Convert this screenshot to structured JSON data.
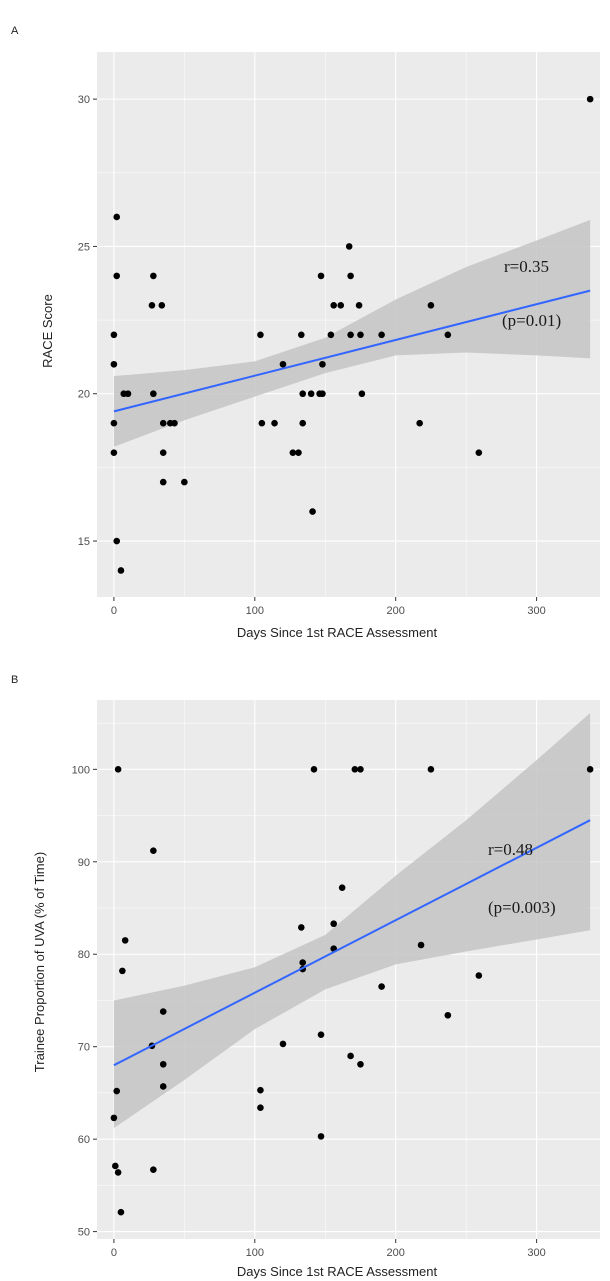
{
  "chart_data": [
    {
      "panel": "A",
      "type": "scatter",
      "xlabel": "Days Since 1st RACE Assessment",
      "ylabel": "RACE Score",
      "xlim": [
        -12,
        345
      ],
      "ylim": [
        13.1,
        31.6
      ],
      "x_ticks": [
        0,
        100,
        200,
        300
      ],
      "y_ticks": [
        15,
        20,
        25,
        30
      ],
      "grid": true,
      "background": "#ebebeb",
      "point_color": "#000000",
      "fit_line_color": "#3366ff",
      "ci_band_color": "#c4c4c4",
      "points": [
        [
          0,
          22
        ],
        [
          0,
          21
        ],
        [
          0,
          19
        ],
        [
          0,
          18
        ],
        [
          2,
          26
        ],
        [
          2,
          24
        ],
        [
          2,
          15
        ],
        [
          5,
          14
        ],
        [
          7,
          20
        ],
        [
          10,
          20
        ],
        [
          28,
          24
        ],
        [
          27,
          23
        ],
        [
          28,
          20
        ],
        [
          34,
          23
        ],
        [
          35,
          19
        ],
        [
          35,
          18
        ],
        [
          35,
          17
        ],
        [
          40,
          19
        ],
        [
          43,
          19
        ],
        [
          50,
          17
        ],
        [
          104,
          22
        ],
        [
          105,
          19
        ],
        [
          114,
          19
        ],
        [
          120,
          21
        ],
        [
          127,
          18
        ],
        [
          131,
          18
        ],
        [
          133,
          22
        ],
        [
          134,
          20
        ],
        [
          134,
          19
        ],
        [
          140,
          20
        ],
        [
          141,
          16
        ],
        [
          146,
          20
        ],
        [
          147,
          24
        ],
        [
          148,
          21
        ],
        [
          148,
          20
        ],
        [
          154,
          22
        ],
        [
          156,
          23
        ],
        [
          161,
          23
        ],
        [
          167,
          25
        ],
        [
          168,
          24
        ],
        [
          168,
          22
        ],
        [
          174,
          23
        ],
        [
          175,
          22
        ],
        [
          176,
          20
        ],
        [
          190,
          22
        ],
        [
          217,
          19
        ],
        [
          225,
          23
        ],
        [
          237,
          22
        ],
        [
          259,
          18
        ],
        [
          338,
          30
        ]
      ],
      "fit_line": [
        [
          0,
          19.4
        ],
        [
          338,
          23.5
        ]
      ],
      "ci_upper": [
        [
          0,
          20.6
        ],
        [
          50,
          20.8
        ],
        [
          100,
          21.1
        ],
        [
          150,
          21.9
        ],
        [
          200,
          23.2
        ],
        [
          250,
          24.3
        ],
        [
          300,
          25.2
        ],
        [
          338,
          25.9
        ]
      ],
      "ci_lower": [
        [
          0,
          18.2
        ],
        [
          50,
          19.1
        ],
        [
          100,
          19.9
        ],
        [
          150,
          20.7
        ],
        [
          200,
          21.3
        ],
        [
          250,
          21.4
        ],
        [
          300,
          21.3
        ],
        [
          338,
          21.2
        ]
      ],
      "annotations": [
        "r=0.35",
        "(p=0.01)"
      ]
    },
    {
      "panel": "B",
      "type": "scatter",
      "xlabel": "Days Since 1st RACE Assessment",
      "ylabel": "Trainee Proportion of UVA (% of Time)",
      "xlim": [
        -12,
        345
      ],
      "ylim": [
        49.2,
        107.5
      ],
      "x_ticks": [
        0,
        100,
        200,
        300
      ],
      "y_ticks": [
        50,
        60,
        70,
        80,
        90,
        100
      ],
      "grid": true,
      "background": "#ebebeb",
      "point_color": "#000000",
      "fit_line_color": "#3366ff",
      "ci_band_color": "#c4c4c4",
      "points": [
        [
          0,
          62.3
        ],
        [
          1,
          57.1
        ],
        [
          2,
          65.2
        ],
        [
          3,
          100
        ],
        [
          3,
          56.4
        ],
        [
          5,
          52.1
        ],
        [
          6,
          78.2
        ],
        [
          8,
          81.5
        ],
        [
          27,
          70.1
        ],
        [
          28,
          91.2
        ],
        [
          28,
          56.7
        ],
        [
          35,
          73.8
        ],
        [
          35,
          68.1
        ],
        [
          35,
          65.7
        ],
        [
          104,
          65.3
        ],
        [
          104,
          63.4
        ],
        [
          120,
          70.3
        ],
        [
          133,
          82.9
        ],
        [
          134,
          79.1
        ],
        [
          134,
          78.4
        ],
        [
          142,
          100
        ],
        [
          147,
          71.3
        ],
        [
          147,
          60.3
        ],
        [
          156,
          83.3
        ],
        [
          156,
          80.6
        ],
        [
          162,
          87.2
        ],
        [
          168,
          69
        ],
        [
          171,
          100
        ],
        [
          175,
          100
        ],
        [
          175,
          68.1
        ],
        [
          190,
          76.5
        ],
        [
          218,
          81
        ],
        [
          225,
          100
        ],
        [
          237,
          73.4
        ],
        [
          259,
          77.7
        ],
        [
          338,
          100
        ]
      ],
      "fit_line": [
        [
          0,
          68
        ],
        [
          338,
          94.5
        ]
      ],
      "ci_upper": [
        [
          0,
          75
        ],
        [
          50,
          76.6
        ],
        [
          100,
          78.6
        ],
        [
          150,
          82.1
        ],
        [
          200,
          88.5
        ],
        [
          250,
          94.5
        ],
        [
          300,
          101
        ],
        [
          338,
          106.1
        ]
      ],
      "ci_lower": [
        [
          0,
          61.2
        ],
        [
          50,
          66.4
        ],
        [
          100,
          71.9
        ],
        [
          150,
          76.2
        ],
        [
          200,
          78.9
        ],
        [
          250,
          80.3
        ],
        [
          300,
          81.6
        ],
        [
          338,
          82.6
        ]
      ],
      "annotations": [
        "r=0.48",
        "(p=0.003)"
      ]
    }
  ]
}
